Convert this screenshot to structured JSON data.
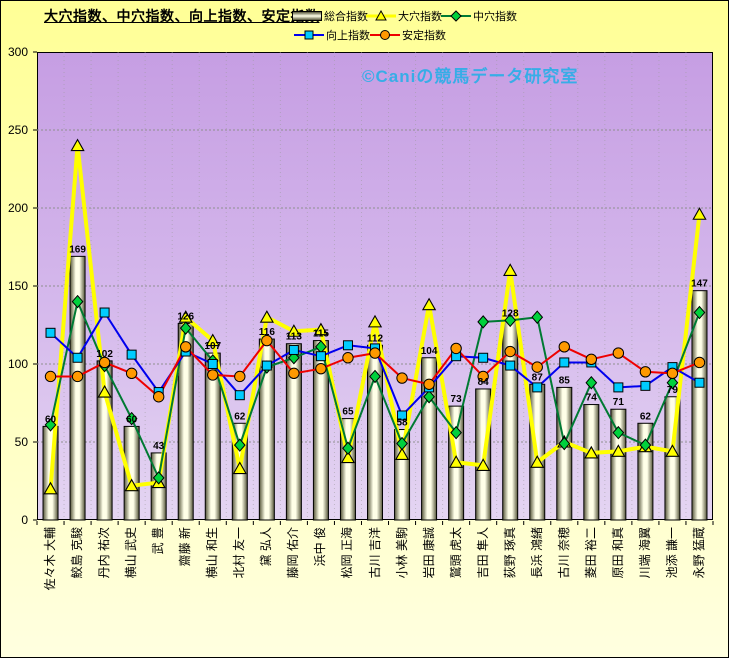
{
  "title": "大穴指数、中穴指数、向上指数、安定指数",
  "watermark": "©Caniの競馬データ研究室",
  "colors": {
    "background": "#FFFF99",
    "plot_top": "#C69EE3",
    "plot_bottom": "#E4D5F2",
    "bar_edge": "#55553A",
    "bar_center": "#FFFFE8"
  },
  "chart_data": {
    "type": "bar",
    "subtype": "bar+line combo",
    "title": "大穴指数、中穴指数、向上指数、安定指数",
    "xlabel": "",
    "ylabel": "",
    "ylim": [
      0,
      300
    ],
    "yticks": [
      0,
      50,
      100,
      150,
      200,
      250,
      300
    ],
    "grid": true,
    "legend_position": "top-right",
    "categories": [
      "佐々木 大輔",
      "鮫島 克駿",
      "丹内 祐次",
      "横山 武史",
      "武 豊",
      "齋藤 新",
      "横山 和生",
      "北村 友一",
      "黛 弘人",
      "藤岡 佑介",
      "浜中 俊",
      "松岡 正海",
      "古川 吉洋",
      "小林 美駒",
      "岩田 康誠",
      "鷲頭 虎太",
      "吉田 隼人",
      "荻野 琢真",
      "長浜 鴻緒",
      "古川 奈穂",
      "菱田 裕二",
      "原田 和真",
      "川端 海翼",
      "池添 謙一",
      "永野 猛蔵"
    ],
    "series": [
      {
        "name": "総合指数",
        "type": "bar",
        "values": [
          60,
          169,
          102,
          60,
          43,
          126,
          107,
          62,
          116,
          113,
          115,
          65,
          112,
          58,
          104,
          73,
          84,
          128,
          87,
          85,
          74,
          71,
          62,
          79,
          147
        ],
        "data_labels": true
      },
      {
        "name": "大穴指数",
        "type": "line",
        "marker": "triangle",
        "line_color": "#FFFF00",
        "marker_color": "#FFFF00",
        "values": [
          20,
          240,
          82,
          22,
          24,
          130,
          115,
          33,
          130,
          121,
          122,
          40,
          127,
          42,
          138,
          37,
          35,
          160,
          37,
          50,
          43,
          44,
          47,
          44,
          196
        ]
      },
      {
        "name": "中穴指数",
        "type": "line",
        "marker": "diamond",
        "line_color": "#007A33",
        "marker_color": "#00D13C",
        "values": [
          61,
          140,
          99,
          65,
          27,
          123,
          102,
          48,
          98,
          104,
          111,
          46,
          92,
          49,
          79,
          56,
          127,
          128,
          130,
          49,
          88,
          56,
          48,
          88,
          133
        ]
      },
      {
        "name": "向上指数",
        "type": "line",
        "marker": "square",
        "line_color": "#0000EE",
        "marker_color": "#00CCFF",
        "values": [
          120,
          104,
          133,
          106,
          82,
          108,
          100,
          80,
          99,
          109,
          105,
          112,
          110,
          67,
          85,
          105,
          104,
          99,
          85,
          101,
          101,
          85,
          86,
          98,
          88
        ]
      },
      {
        "name": "安定指数",
        "type": "line",
        "marker": "circle",
        "line_color": "#EE0000",
        "marker_color": "#FF9900",
        "values": [
          92,
          92,
          101,
          94,
          79,
          111,
          93,
          92,
          115,
          94,
          97,
          104,
          107,
          91,
          87,
          110,
          92,
          108,
          98,
          111,
          103,
          107,
          95,
          94,
          101
        ]
      }
    ]
  }
}
